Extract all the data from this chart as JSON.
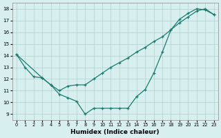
{
  "line1_x": [
    0,
    1,
    2,
    3,
    4,
    5,
    6,
    7,
    8,
    9,
    10,
    11,
    12,
    13,
    14,
    15,
    16,
    17,
    18,
    19,
    20,
    21,
    22,
    23
  ],
  "line1_y": [
    14.1,
    13.0,
    12.2,
    12.1,
    11.5,
    10.7,
    10.4,
    10.1,
    9.0,
    9.5,
    9.5,
    9.5,
    9.5,
    9.5,
    10.5,
    11.1,
    12.5,
    14.3,
    16.2,
    17.1,
    17.6,
    18.0,
    17.9,
    17.5
  ],
  "line2_x": [
    0,
    3,
    4,
    5,
    6,
    7,
    8,
    9,
    10,
    11,
    12,
    13,
    14,
    15,
    16,
    17,
    18,
    19,
    20,
    21,
    22,
    23
  ],
  "line2_y": [
    14.1,
    12.1,
    11.5,
    11.0,
    11.4,
    11.5,
    11.5,
    12.0,
    12.5,
    13.0,
    13.4,
    13.8,
    14.3,
    14.7,
    15.2,
    15.6,
    16.2,
    16.8,
    17.3,
    17.8,
    18.0,
    17.5
  ],
  "color": "#1a7a6e",
  "bg_color": "#d8eff0",
  "grid_color": "#b0cece",
  "xlabel": "Humidex (Indice chaleur)",
  "ylim": [
    8.5,
    18.5
  ],
  "xlim": [
    -0.5,
    23.5
  ],
  "yticks": [
    9,
    10,
    11,
    12,
    13,
    14,
    15,
    16,
    17,
    18
  ],
  "xticks": [
    0,
    1,
    2,
    3,
    4,
    5,
    6,
    7,
    8,
    9,
    10,
    11,
    12,
    13,
    14,
    15,
    16,
    17,
    18,
    19,
    20,
    21,
    22,
    23
  ],
  "marker": "+"
}
